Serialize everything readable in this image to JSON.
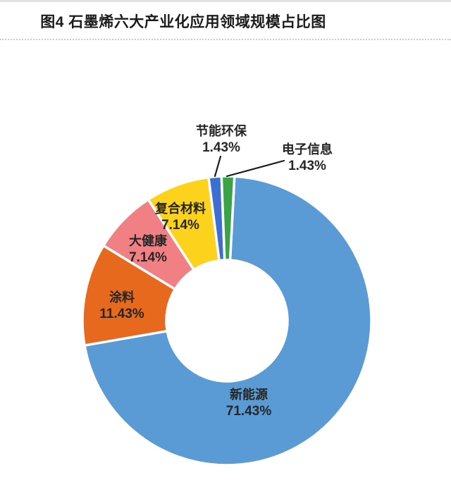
{
  "header": {
    "title": "图4 石墨烯六大产业化应用领域规模占比图"
  },
  "chart_data": {
    "type": "pie",
    "subtype": "donut",
    "title": "图4 石墨烯六大产业化应用领域规模占比图",
    "unit": "%",
    "total": 100,
    "labels_on_chart": true,
    "legend_position": "none",
    "segments": [
      {
        "label": "新能源",
        "value": 71.43,
        "pct_label": "71.43%",
        "color": "#5B9BD5"
      },
      {
        "label": "涂料",
        "value": 11.43,
        "pct_label": "11.43%",
        "color": "#E7691E"
      },
      {
        "label": "大健康",
        "value": 7.14,
        "pct_label": "7.14%",
        "color": "#F08083"
      },
      {
        "label": "复合材料",
        "value": 7.14,
        "pct_label": "7.14%",
        "color": "#FCD21C"
      },
      {
        "label": "节能环保",
        "value": 1.43,
        "pct_label": "1.43%",
        "color": "#3C6FD1"
      },
      {
        "label": "电子信息",
        "value": 1.43,
        "pct_label": "1.43%",
        "color": "#3AA346"
      }
    ],
    "leader_line_color": "#1a1a1a",
    "slice_gap_color": "#ffffff"
  }
}
